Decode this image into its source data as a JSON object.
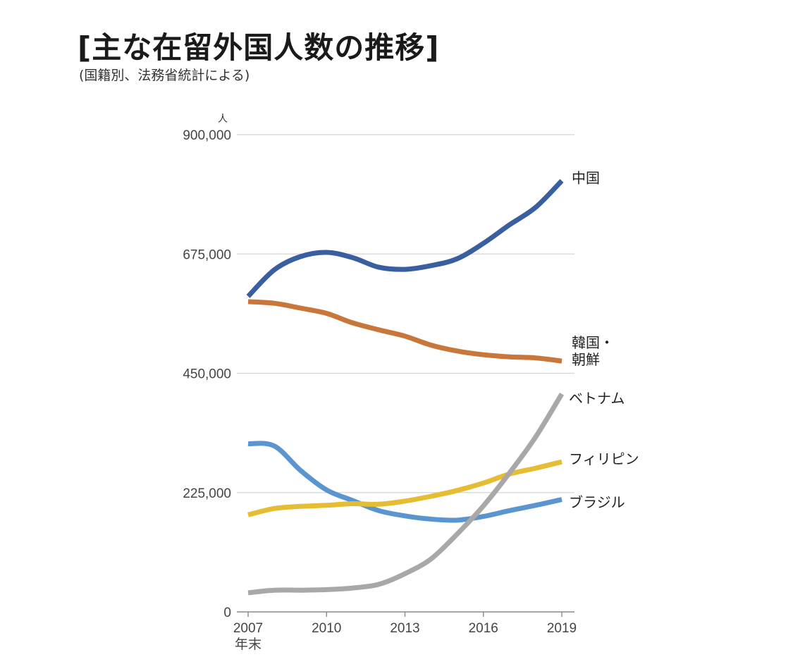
{
  "header": {
    "title": "[主な在留外国人数の推移]",
    "subtitle": "(国籍別、法務省統計による)"
  },
  "chart_data": {
    "type": "line",
    "title": "[主な在留外国人数の推移]",
    "subtitle": "(国籍別、法務省統計による)",
    "ylabel": "人",
    "xlabel": "年末",
    "ylim": [
      0,
      900000
    ],
    "grid": true,
    "yticks": [
      {
        "value": 0,
        "label": "0"
      },
      {
        "value": 225000,
        "label": "225,000"
      },
      {
        "value": 450000,
        "label": "450,000"
      },
      {
        "value": 675000,
        "label": "675,000"
      },
      {
        "value": 900000,
        "label": "900,000"
      }
    ],
    "x": [
      2007,
      2008,
      2009,
      2010,
      2011,
      2012,
      2013,
      2014,
      2015,
      2016,
      2017,
      2018,
      2019
    ],
    "xticks": [
      {
        "value": 2007,
        "label": "2007"
      },
      {
        "value": 2010,
        "label": "2010"
      },
      {
        "value": 2013,
        "label": "2013"
      },
      {
        "value": 2016,
        "label": "2016"
      },
      {
        "value": 2019,
        "label": "2019"
      }
    ],
    "series": [
      {
        "name": "中国",
        "label_lines": [
          "中国"
        ],
        "color": "#3a5fa0",
        "values": [
          595000,
          645000,
          670000,
          678000,
          668000,
          650000,
          646000,
          653000,
          666000,
          695000,
          730000,
          763000,
          813000
        ]
      },
      {
        "name": "韓国・朝鮮",
        "label_lines": [
          "韓国・",
          "朝鮮"
        ],
        "color": "#c8763a",
        "values": [
          585000,
          582000,
          573000,
          563000,
          545000,
          532000,
          520000,
          503000,
          492000,
          485000,
          481000,
          479000,
          473000
        ]
      },
      {
        "name": "ベトナム",
        "label_lines": [
          "ベトナム"
        ],
        "color": "#a8a8a8",
        "values": [
          36000,
          41000,
          41000,
          42000,
          45000,
          52000,
          72000,
          100000,
          147000,
          200000,
          262000,
          330000,
          411000
        ]
      },
      {
        "name": "フィリピン",
        "label_lines": [
          "フィリピン"
        ],
        "color": "#e6bc32",
        "values": [
          183000,
          195000,
          199000,
          201000,
          204000,
          203000,
          209000,
          218000,
          229000,
          243000,
          260000,
          271000,
          283000
        ]
      },
      {
        "name": "ブラジル",
        "label_lines": [
          "ブラジル"
        ],
        "color": "#5b95cf",
        "values": [
          317000,
          313000,
          267000,
          230000,
          210000,
          191000,
          181000,
          175000,
          173000,
          180000,
          191000,
          201000,
          212000
        ]
      }
    ]
  }
}
